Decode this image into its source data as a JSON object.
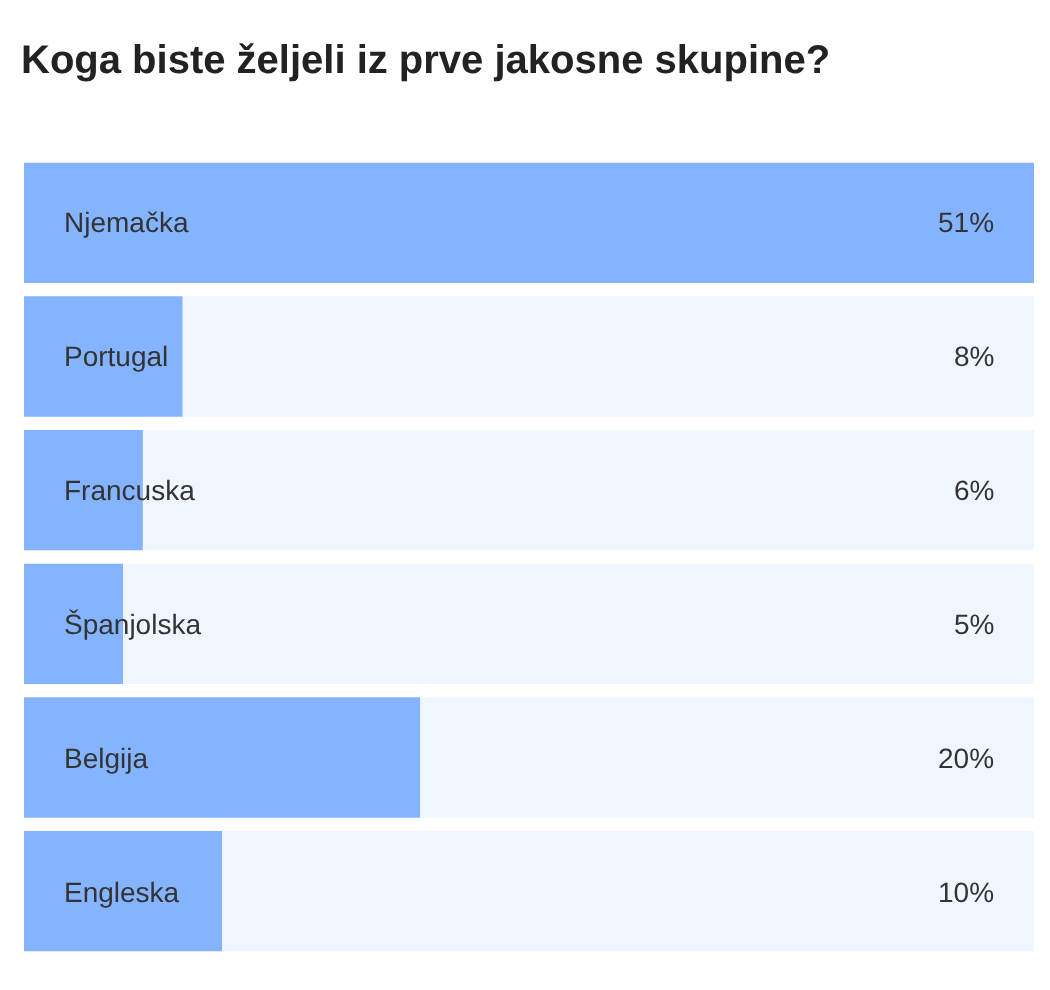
{
  "chart_data": {
    "type": "bar",
    "orientation": "horizontal",
    "title": "Koga biste željeli iz prve jakosne skupine?",
    "categories": [
      "Njemačka",
      "Portugal",
      "Francuska",
      "Španjolska",
      "Belgija",
      "Engleska"
    ],
    "values": [
      51,
      8,
      6,
      5,
      20,
      10
    ],
    "value_labels": [
      "51%",
      "8%",
      "6%",
      "5%",
      "20%",
      "10%"
    ],
    "color": "#84b4ff"
  }
}
